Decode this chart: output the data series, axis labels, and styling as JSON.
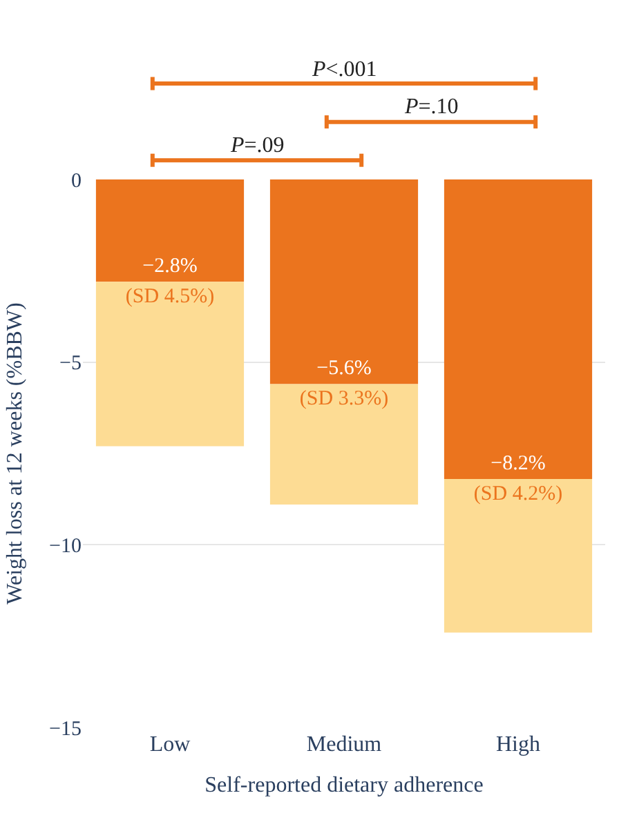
{
  "chart_data": {
    "type": "bar",
    "stacked": true,
    "categories": [
      "Low",
      "Medium",
      "High"
    ],
    "series": [
      {
        "color": "#eb741e",
        "values": [
          -2.8,
          -5.6,
          -8.2
        ],
        "value_labels": [
          "−2.8%",
          "−5.6%",
          "−8.2%"
        ]
      },
      {
        "color": "#fddc94",
        "values": [
          -4.5,
          -3.3,
          -4.2
        ],
        "value_labels": [
          "(SD 4.5%)",
          "(SD 3.3%)",
          "(SD 4.2%)"
        ]
      }
    ],
    "xlabel": "Self-reported dietary adherence",
    "ylabel": "Weight loss at 12 weeks (%BBW)",
    "ylim": [
      -15,
      0
    ],
    "yticks": [
      {
        "value": 0,
        "label": "0"
      },
      {
        "value": -5,
        "label": "−5"
      },
      {
        "value": -10,
        "label": "−10"
      },
      {
        "value": -15,
        "label": "−15"
      }
    ],
    "grid": "y",
    "annotations": [
      "P<.001",
      "P=.10",
      "P=.09"
    ]
  }
}
